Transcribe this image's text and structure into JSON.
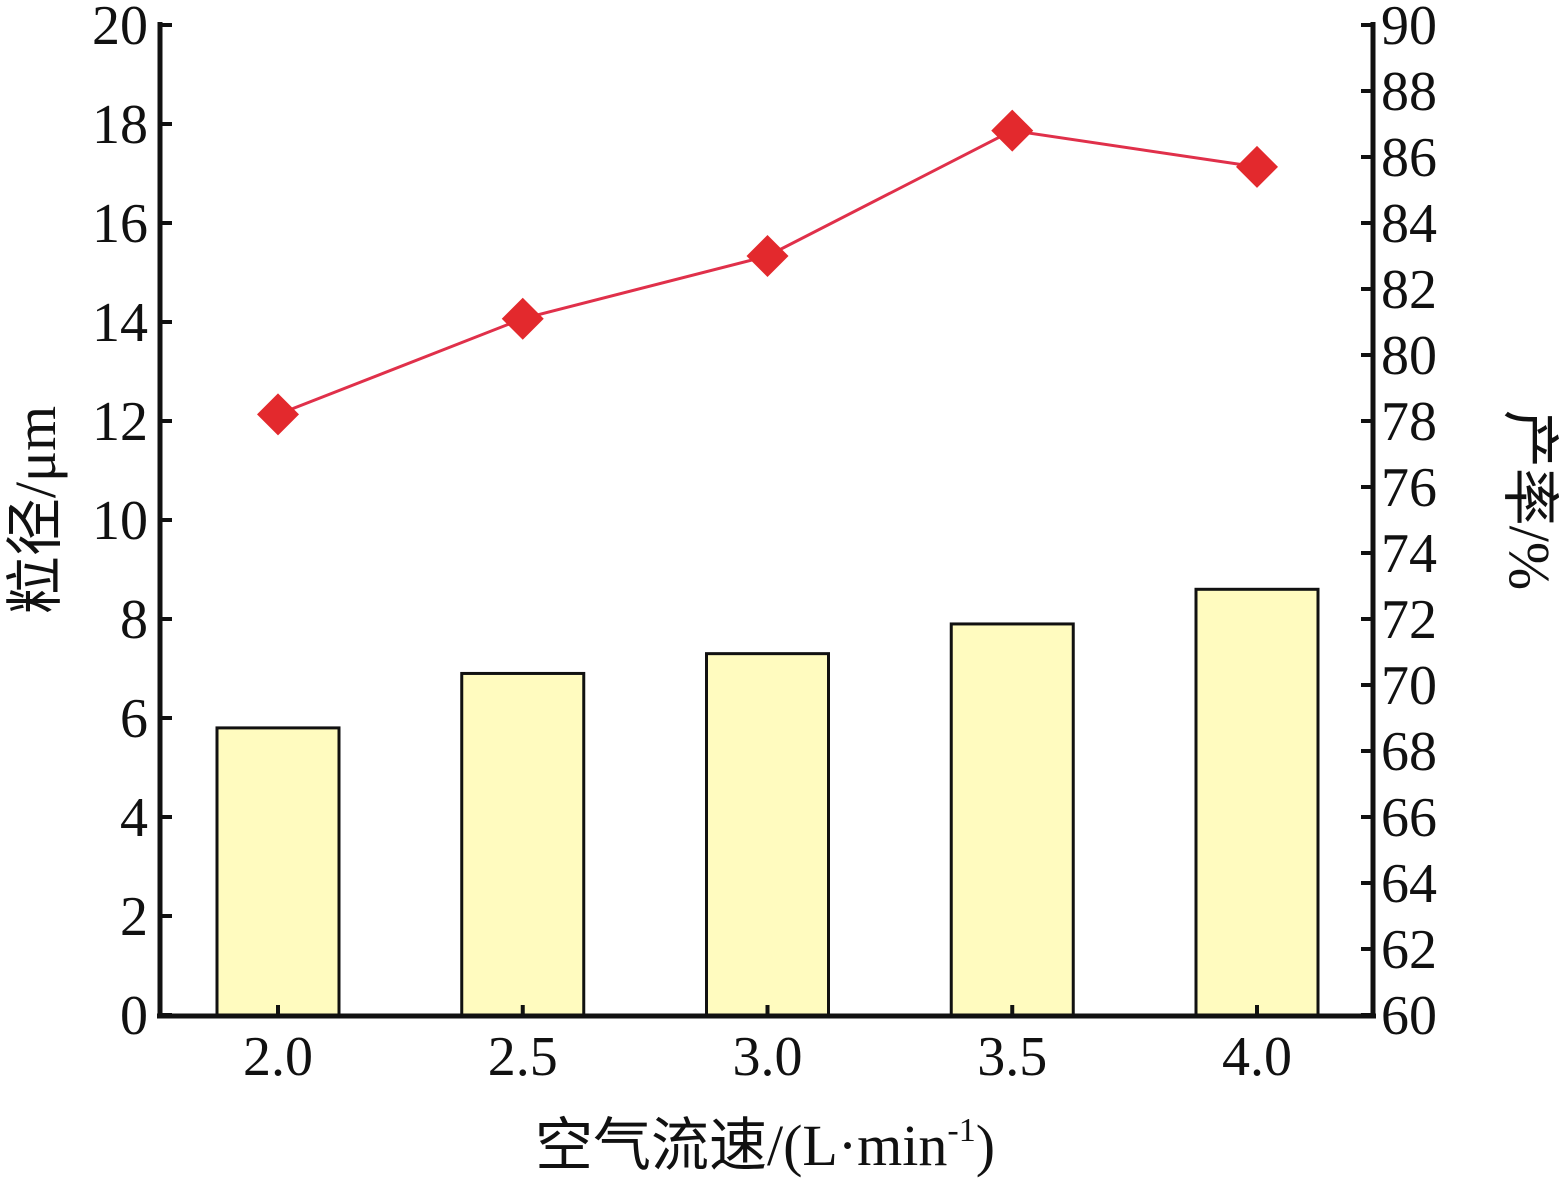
{
  "chart_data": {
    "type": "bar",
    "categories": [
      "2.0",
      "2.5",
      "3.0",
      "3.5",
      "4.0"
    ],
    "series": [
      {
        "type": "bar",
        "axis": "left",
        "values": [
          5.8,
          6.9,
          7.3,
          7.9,
          8.6
        ]
      },
      {
        "type": "line",
        "axis": "right",
        "values": [
          78.2,
          81.1,
          83.0,
          86.8,
          85.7
        ]
      }
    ],
    "xlabel": "空气流速/(L·min-1)",
    "xlabel_parts": {
      "main": "空气流速/(L·min",
      "sup": "-1",
      "end": ")"
    },
    "ylabel": "粒径/μm",
    "ylabel_right": "产率/%",
    "ylim": [
      0,
      20
    ],
    "ylim_right": [
      60,
      90
    ],
    "yticks": [
      "0",
      "2",
      "4",
      "6",
      "8",
      "10",
      "12",
      "14",
      "16",
      "18",
      "20"
    ],
    "yticks_right": [
      "60",
      "62",
      "64",
      "66",
      "68",
      "70",
      "72",
      "74",
      "76",
      "78",
      "80",
      "82",
      "84",
      "86",
      "88",
      "90"
    ],
    "grid": false,
    "colors": {
      "bar_fill": "#fffbbf",
      "line": "#e0304a",
      "marker": "#e3292d",
      "axis": "#111111"
    }
  }
}
